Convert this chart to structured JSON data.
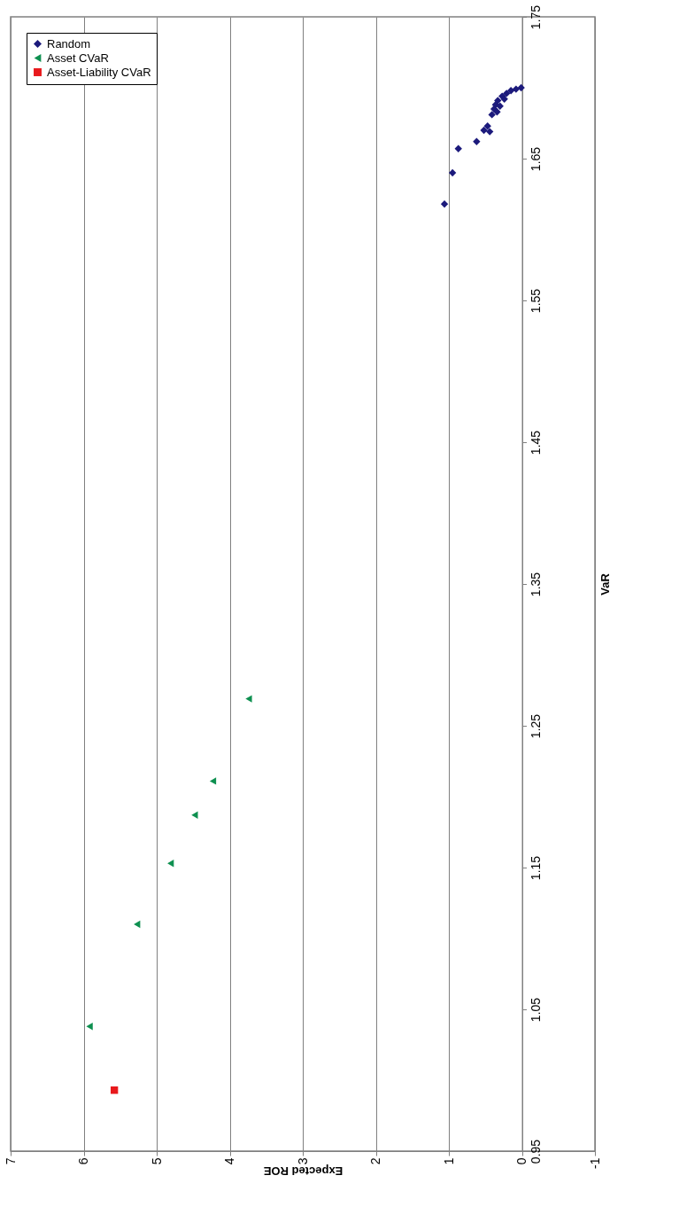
{
  "chart_data": {
    "type": "scatter",
    "xlabel": "Expected ROE",
    "ylabel": "VaR",
    "xlim": [
      7,
      -1
    ],
    "xticks": [
      7,
      6,
      5,
      4,
      3,
      2,
      1,
      0,
      -1
    ],
    "ylim": [
      0.95,
      1.75
    ],
    "yticks": [
      0.95,
      1.05,
      1.15,
      1.25,
      1.35,
      1.45,
      1.55,
      1.65,
      1.75
    ],
    "grid": "x",
    "legend": "top left",
    "series": [
      {
        "name": "Random",
        "color": "#1c1a7c",
        "marker": "diamond",
        "x": [
          1.06,
          0.95,
          0.87,
          0.62,
          0.52,
          0.47,
          0.44,
          0.41,
          0.38,
          0.36,
          0.33,
          0.27,
          0.21,
          0.15,
          0.08,
          0.01,
          0.34,
          0.3,
          0.24
        ],
        "values": [
          1.618,
          1.64,
          1.657,
          1.662,
          1.67,
          1.673,
          1.669,
          1.681,
          1.685,
          1.688,
          1.691,
          1.694,
          1.696,
          1.698,
          1.699,
          1.7,
          1.683,
          1.687,
          1.692
        ]
      },
      {
        "name": "Asset CVaR",
        "color": "#0e9050",
        "marker": "triangle",
        "x": [
          5.92,
          5.27,
          4.81,
          4.48,
          4.23,
          3.74
        ],
        "values": [
          1.038,
          1.11,
          1.153,
          1.187,
          1.211,
          1.269
        ]
      },
      {
        "name": "Asset-Liability CVaR",
        "color": "#e8191c",
        "marker": "square",
        "x": [
          5.58
        ],
        "values": [
          0.993
        ]
      }
    ]
  }
}
